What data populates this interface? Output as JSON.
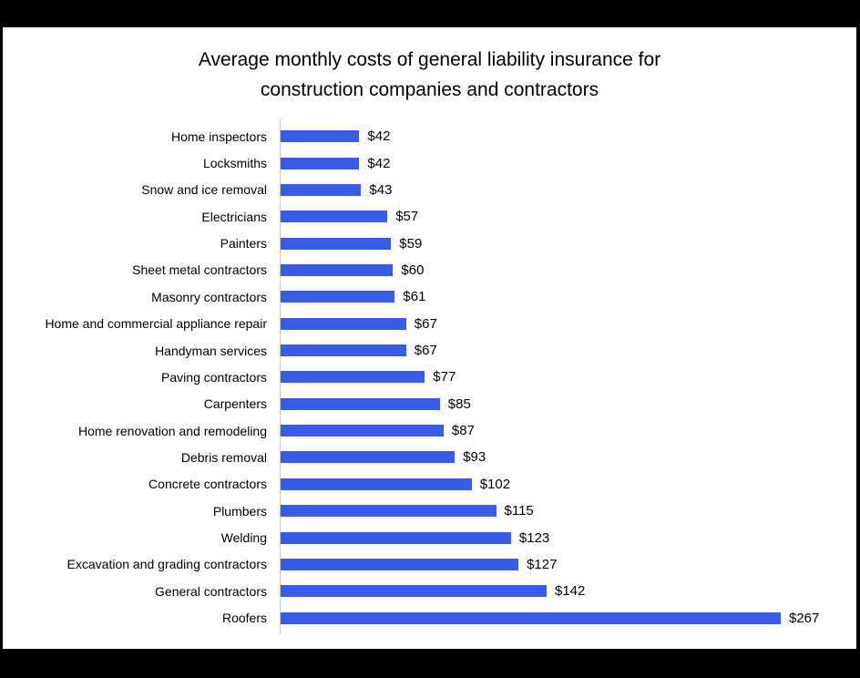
{
  "chart_data": {
    "type": "bar",
    "orientation": "horizontal",
    "title": "Average monthly costs of general liability insurance for construction companies and contractors",
    "title_lines": [
      "Average monthly costs of general liability insurance for",
      "construction companies and contractors"
    ],
    "categories": [
      "Home inspectors",
      "Locksmiths",
      "Snow and ice removal",
      "Electricians",
      "Painters",
      "Sheet metal contractors",
      "Masonry contractors",
      "Home and commercial appliance repair",
      "Handyman services",
      "Paving contractors",
      "Carpenters",
      "Home renovation and remodeling",
      "Debris removal",
      "Concrete contractors",
      "Plumbers",
      "Welding",
      "Excavation and grading contractors",
      "General contractors",
      "Roofers"
    ],
    "values": [
      42,
      42,
      43,
      57,
      59,
      60,
      61,
      67,
      67,
      77,
      85,
      87,
      93,
      102,
      115,
      123,
      127,
      142,
      267
    ],
    "value_labels": [
      "$42",
      "$42",
      "$43",
      "$57",
      "$59",
      "$60",
      "$61",
      "$67",
      "$67",
      "$77",
      "$85",
      "$87",
      "$93",
      "$102",
      "$115",
      "$123",
      "$127",
      "$142",
      "$267"
    ],
    "xlabel": "",
    "ylabel": "",
    "xlim": [
      0,
      267
    ],
    "grid": false,
    "legend": false,
    "bar_color": "#3A5AE8",
    "axis_line_color": "#C8C8C8",
    "text_color": "#000000",
    "plot_background": "#FFFFFF",
    "frame_color": "#000000"
  }
}
